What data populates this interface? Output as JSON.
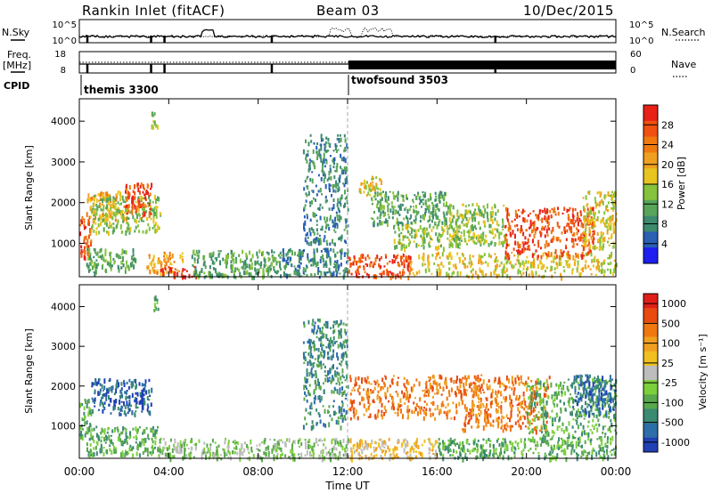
{
  "header": {
    "station": "Rankin Inlet (fitACF)",
    "beam": "Beam 03",
    "date": "10/Dec/2015"
  },
  "noise_panel": {
    "left_label": "N.Sky",
    "right_label": "N.Search",
    "ticks_left": [
      "10^5",
      "10^0"
    ],
    "ticks_right": [
      "10^5",
      "10^0"
    ]
  },
  "freq_panel": {
    "left_label_1": "Freq.",
    "left_label_2": "[MHz]",
    "right_label": "Nave",
    "ticks_left": [
      "18",
      "8"
    ],
    "ticks_right": [
      "60",
      "0"
    ]
  },
  "cpid": {
    "label": "CPID",
    "segments": [
      {
        "name": "themis 3300",
        "start_hour": 0
      },
      {
        "name": "twofsound 3503",
        "start_hour": 12
      }
    ]
  },
  "time_axis": {
    "title": "Time UT",
    "ticks": [
      "00:00",
      "04:00",
      "08:00",
      "12:00",
      "16:00",
      "20:00",
      "00:00"
    ],
    "range_hours": [
      0,
      24
    ]
  },
  "chart_data": [
    {
      "type": "heatmap",
      "panel": "power",
      "ylabel": "Slant Range [km]",
      "yticks": [
        "1000",
        "2000",
        "3000",
        "4000"
      ],
      "ylim": [
        180,
        4550
      ],
      "x_range_hours": [
        0,
        24
      ],
      "colorbar": {
        "label": "Power [dB]",
        "ticks": [
          "4",
          "8",
          "12",
          "16",
          "20",
          "24",
          "28"
        ],
        "colors": [
          "#1e1ef0",
          "#2a5fb4",
          "#3d8a6e",
          "#58a55a",
          "#86c33c",
          "#e8c420",
          "#f0a020",
          "#f07a10",
          "#f05010",
          "#e82018"
        ]
      },
      "regions": [
        {
          "t0": 0.0,
          "t1": 0.5,
          "r0": 600,
          "r1": 1700,
          "c": 8
        },
        {
          "t0": 0.3,
          "t1": 2.2,
          "r0": 1600,
          "r1": 2300,
          "c": 6
        },
        {
          "t0": 0.5,
          "t1": 3.6,
          "r0": 1300,
          "r1": 2200,
          "c": 4
        },
        {
          "t0": 2.0,
          "t1": 3.2,
          "r0": 1700,
          "r1": 2500,
          "c": 8
        },
        {
          "t0": 0.3,
          "t1": 2.5,
          "r0": 300,
          "r1": 900,
          "c": 3
        },
        {
          "t0": 3.0,
          "t1": 4.6,
          "r0": 300,
          "r1": 800,
          "c": 6
        },
        {
          "t0": 3.6,
          "t1": 5.2,
          "r0": 200,
          "r1": 450,
          "c": 9
        },
        {
          "t0": 5.0,
          "t1": 9.0,
          "r0": 200,
          "r1": 850,
          "c": 3
        },
        {
          "t0": 9.0,
          "t1": 12.0,
          "r0": 200,
          "r1": 900,
          "c": 2
        },
        {
          "t0": 12.0,
          "t1": 14.8,
          "r0": 200,
          "r1": 750,
          "c": 8
        },
        {
          "t0": 14.8,
          "t1": 24.0,
          "r0": 200,
          "r1": 800,
          "c": 5
        },
        {
          "t0": 13.0,
          "t1": 16.5,
          "r0": 1500,
          "r1": 2300,
          "c": 3
        },
        {
          "t0": 14.0,
          "t1": 17.0,
          "r0": 900,
          "r1": 1500,
          "c": 4
        },
        {
          "t0": 16.5,
          "t1": 19.0,
          "r0": 1000,
          "r1": 2000,
          "c": 4
        },
        {
          "t0": 19.0,
          "t1": 23.0,
          "r0": 700,
          "r1": 1900,
          "c": 8
        },
        {
          "t0": 22.5,
          "t1": 24.0,
          "r0": 900,
          "r1": 2300,
          "c": 5
        },
        {
          "t0": 3.2,
          "t1": 3.5,
          "r0": 3900,
          "r1": 4300,
          "c": 4
        },
        {
          "t0": 10.0,
          "t1": 12.0,
          "r0": 1000,
          "r1": 3700,
          "c": 2
        },
        {
          "t0": 12.5,
          "t1": 13.5,
          "r0": 2200,
          "r1": 2700,
          "c": 5
        }
      ]
    },
    {
      "type": "heatmap",
      "panel": "velocity",
      "ylabel": "Slant Range [km]",
      "yticks": [
        "1000",
        "2000",
        "3000",
        "4000"
      ],
      "ylim": [
        180,
        4550
      ],
      "x_range_hours": [
        0,
        24
      ],
      "colorbar": {
        "label": "Velocity [m s⁻¹]",
        "ticks": [
          "1000",
          "500",
          "100",
          "25",
          "-25",
          "-100",
          "-500",
          "-1000"
        ],
        "colors": [
          "#2040b4",
          "#2e6ea8",
          "#3b8a72",
          "#5aa84e",
          "#7cd03c",
          "#bdbdbd",
          "#f0c020",
          "#f0a020",
          "#f07810",
          "#e84a10",
          "#e02018"
        ]
      },
      "regions": [
        {
          "t0": 0.0,
          "t1": 0.5,
          "r0": 700,
          "r1": 1700,
          "c": 3
        },
        {
          "t0": 0.5,
          "t1": 3.2,
          "r0": 1300,
          "r1": 2200,
          "c": 1
        },
        {
          "t0": 0.3,
          "t1": 3.5,
          "r0": 300,
          "r1": 1000,
          "c": 3
        },
        {
          "t0": 3.5,
          "t1": 6.0,
          "r0": 200,
          "r1": 700,
          "c": 4
        },
        {
          "t0": 6.0,
          "t1": 12.0,
          "r0": 200,
          "r1": 700,
          "c": 4
        },
        {
          "t0": 12.0,
          "t1": 18.0,
          "r0": 1200,
          "r1": 2300,
          "c": 8
        },
        {
          "t0": 12.0,
          "t1": 16.0,
          "r0": 200,
          "r1": 700,
          "c": 6
        },
        {
          "t0": 16.0,
          "t1": 24.0,
          "r0": 200,
          "r1": 700,
          "c": 3
        },
        {
          "t0": 17.0,
          "t1": 21.0,
          "r0": 900,
          "r1": 2300,
          "c": 8
        },
        {
          "t0": 20.0,
          "t1": 24.0,
          "r0": 700,
          "r1": 2200,
          "c": 3
        },
        {
          "t0": 22.0,
          "t1": 24.0,
          "r0": 1300,
          "r1": 2300,
          "c": 1
        },
        {
          "t0": 3.2,
          "t1": 3.5,
          "r0": 3900,
          "r1": 4300,
          "c": 3
        },
        {
          "t0": 10.0,
          "t1": 12.0,
          "r0": 1000,
          "r1": 3700,
          "c": 2
        }
      ]
    }
  ]
}
